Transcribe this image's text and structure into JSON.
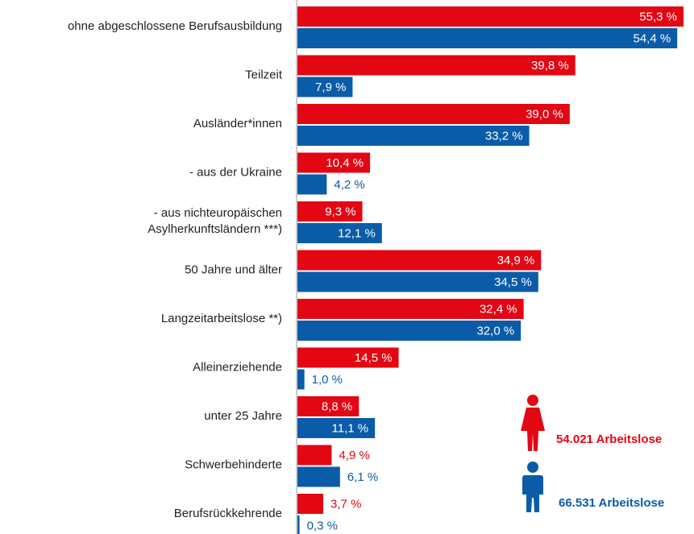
{
  "chart_data": {
    "type": "bar",
    "orientation": "horizontal",
    "categories": [
      "ohne abgeschlossene Berufsausbildung",
      "Teilzeit",
      "Ausländer*innen",
      "- aus der Ukraine",
      "- aus nichteuropäischen\nAsylherkunftsländern ***)",
      "50 Jahre und älter",
      "Langzeitarbeitslose **)",
      "Alleinerziehende",
      "unter 25 Jahre",
      "Schwerbehinderte",
      "Berufsrückkehrende"
    ],
    "series": [
      {
        "name": "54.021 Arbeitslose",
        "color": "#e30613",
        "values": [
          55.3,
          39.8,
          39.0,
          10.4,
          9.3,
          34.9,
          32.4,
          14.5,
          8.8,
          4.9,
          3.7
        ],
        "value_labels": [
          "55,3 %",
          "39,8 %",
          "39,0 %",
          "10,4 %",
          "9,3 %",
          "34,9 %",
          "32,4 %",
          "14,5 %",
          "8,8 %",
          "4,9 %",
          "3,7 %"
        ]
      },
      {
        "name": "66.531 Arbeitslose",
        "color": "#0a5ca8",
        "values": [
          54.4,
          7.9,
          33.2,
          4.2,
          12.1,
          34.5,
          32.0,
          1.0,
          11.1,
          6.1,
          0.3
        ],
        "value_labels": [
          "54,4 %",
          "7,9 %",
          "33,2 %",
          "4,2 %",
          "12,1 %",
          "34,5 %",
          "32,0 %",
          "1,0 %",
          "11,1 %",
          "6,1 %",
          "0,3 %"
        ]
      }
    ]
  }
}
